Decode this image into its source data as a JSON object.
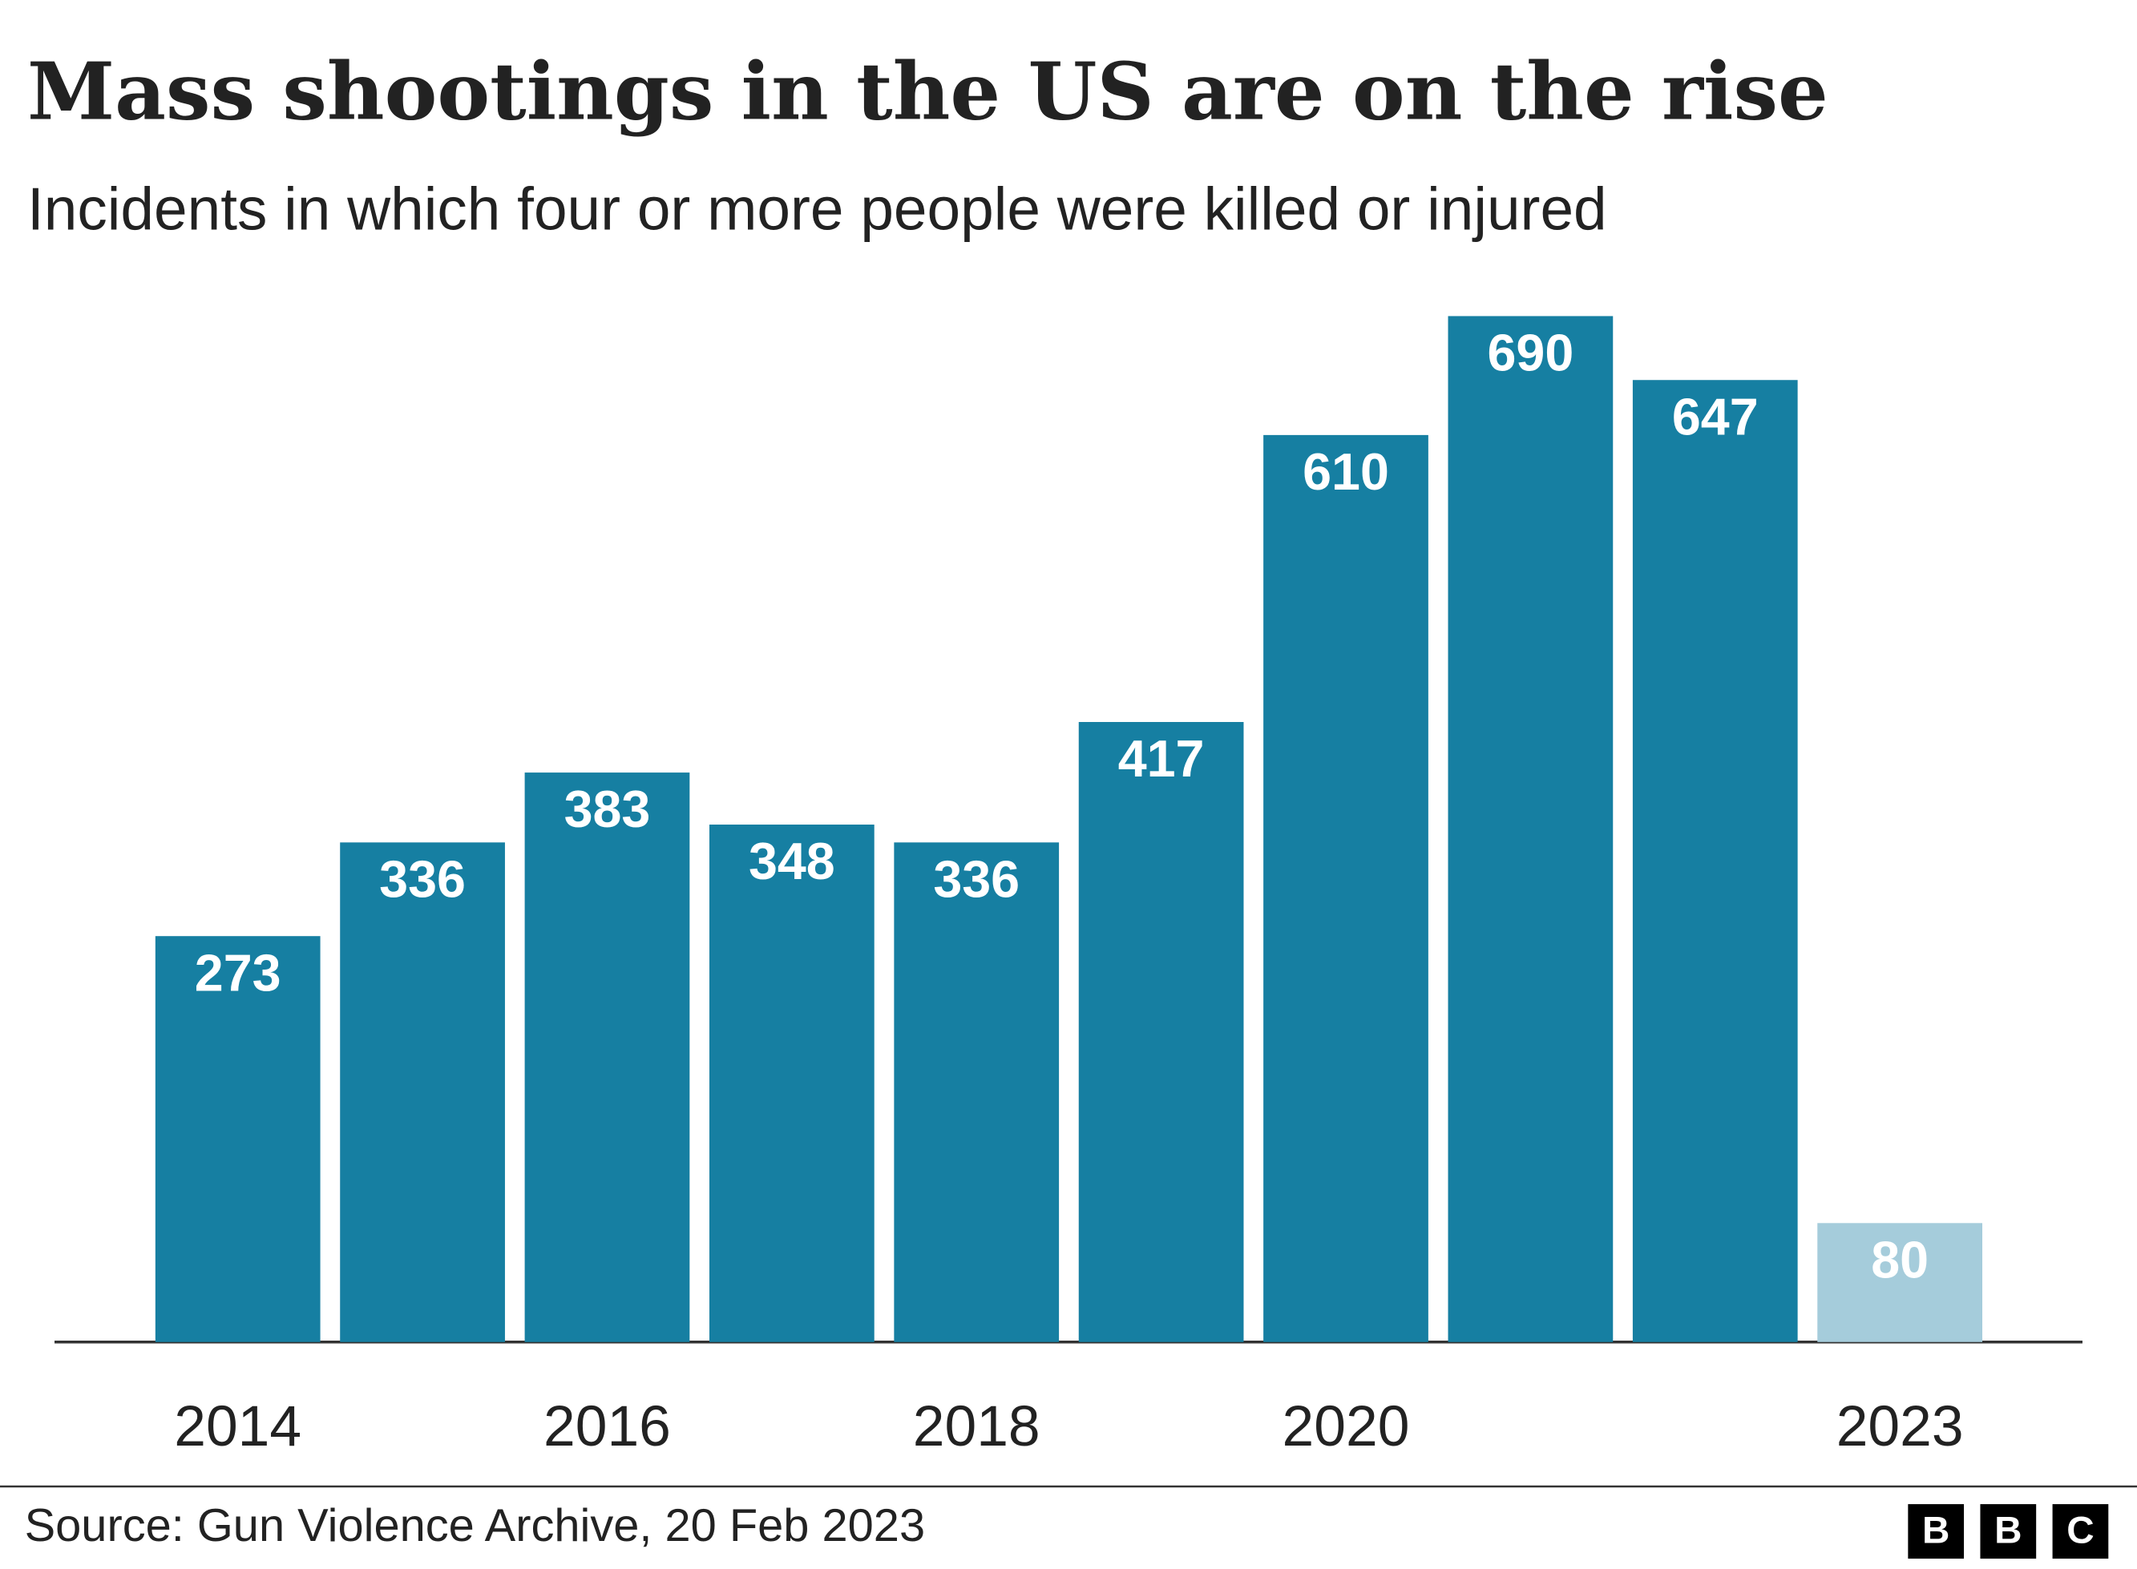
{
  "chart_data": {
    "type": "bar",
    "title": "Mass shootings in the US are on the rise",
    "subtitle": "Incidents in which four or more people were killed or injured",
    "categories": [
      "2014",
      null,
      "2016",
      null,
      "2018",
      null,
      "2020",
      null,
      null,
      "2023"
    ],
    "values": [
      273,
      336,
      383,
      348,
      336,
      417,
      610,
      690,
      647,
      80
    ],
    "colors": [
      "#167fa2",
      "#167fa2",
      "#167fa2",
      "#167fa2",
      "#167fa2",
      "#167fa2",
      "#167fa2",
      "#167fa2",
      "#167fa2",
      "#a5ccdb"
    ],
    "source": "Source: Gun Violence Archive, 20 Feb 2023",
    "logo": [
      "B",
      "B",
      "C"
    ]
  }
}
